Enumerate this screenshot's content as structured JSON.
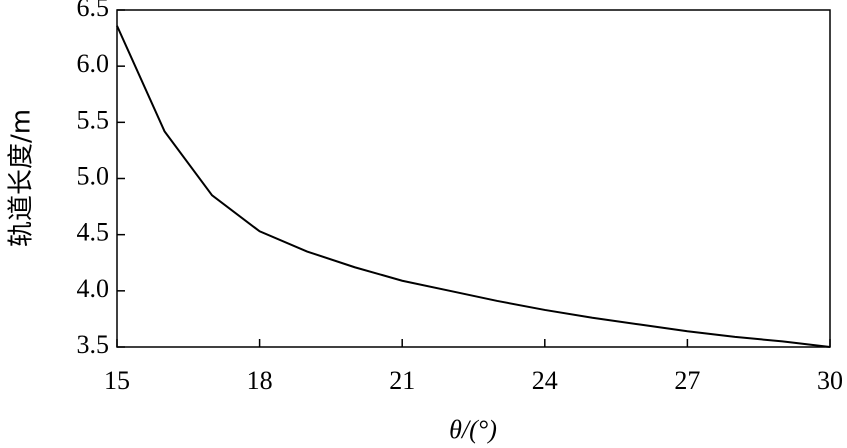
{
  "chart_data": {
    "type": "line",
    "x_label": "θ/(°)",
    "y_label": "轨道长度/m",
    "x": [
      15,
      16,
      17,
      18,
      19,
      20,
      21,
      22,
      23,
      24,
      25,
      26,
      27,
      28,
      29,
      30
    ],
    "series": [
      {
        "color": "#000000",
        "values": [
          6.36,
          5.42,
          4.85,
          4.53,
          4.35,
          4.21,
          4.09,
          4.0,
          3.91,
          3.83,
          3.76,
          3.7,
          3.64,
          3.59,
          3.55,
          3.5
        ]
      }
    ],
    "xlim": [
      15,
      30
    ],
    "xticks": [
      15,
      18,
      21,
      24,
      27,
      30
    ],
    "ylim": [
      3.5,
      6.5
    ],
    "yticks": [
      3.5,
      {
        "value": 4,
        "label": "4.0"
      },
      4.5,
      {
        "value": 5,
        "label": "5.0"
      },
      5.5,
      {
        "value": 6,
        "label": "6.0"
      },
      6.5
    ]
  }
}
